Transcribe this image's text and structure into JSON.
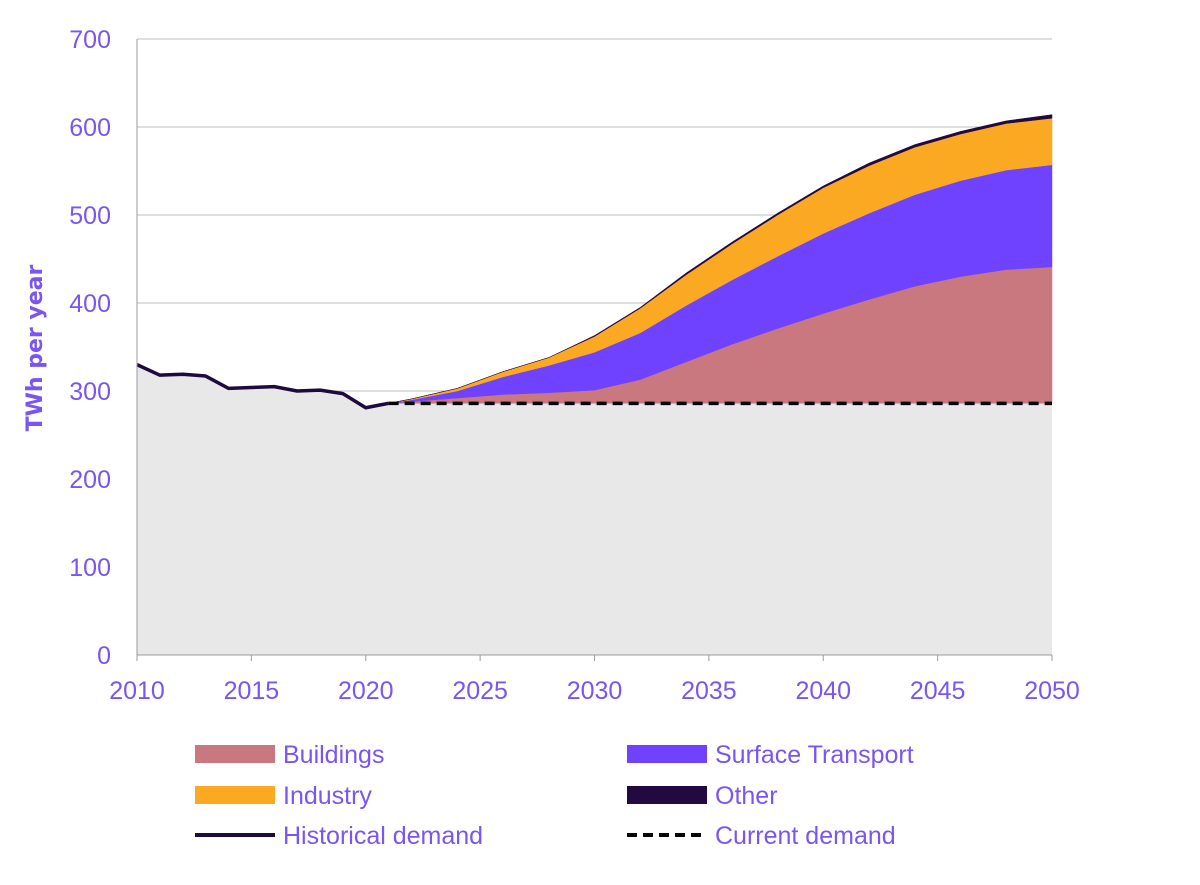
{
  "chart_data": {
    "type": "area",
    "xlabel": "",
    "ylabel": "TWh per year",
    "xlim": [
      2010,
      2050
    ],
    "ylim": [
      0,
      700
    ],
    "x_ticks": [
      2010,
      2015,
      2020,
      2025,
      2030,
      2035,
      2040,
      2045,
      2050
    ],
    "y_ticks": [
      0,
      100,
      200,
      300,
      400,
      500,
      600,
      700
    ],
    "grid": "horizontal",
    "legend_position": "bottom",
    "baseline_fill_color": "#e8e8e8",
    "historical": {
      "name": "Historical demand",
      "color": "#1e0a3c",
      "x": [
        2010,
        2011,
        2012,
        2013,
        2014,
        2015,
        2016,
        2017,
        2018,
        2019,
        2020,
        2021
      ],
      "y": [
        330,
        318,
        319,
        317,
        303,
        304,
        305,
        300,
        301,
        297,
        281,
        286
      ]
    },
    "current_demand": {
      "name": "Current demand",
      "color": "#000000",
      "value": 286,
      "from_x": 2021,
      "to_x": 2050
    },
    "stack_x": [
      2021,
      2022,
      2024,
      2026,
      2028,
      2030,
      2032,
      2034,
      2036,
      2038,
      2040,
      2042,
      2044,
      2046,
      2048,
      2050
    ],
    "series": [
      {
        "name": "Buildings",
        "color": "#c8787e",
        "values": [
          0,
          2,
          6,
          10,
          12,
          15,
          27,
          47,
          67,
          85,
          102,
          118,
          133,
          144,
          152,
          155
        ]
      },
      {
        "name": "Surface Transport",
        "color": "#6e42ff",
        "values": [
          0,
          2,
          8,
          20,
          31,
          43,
          53,
          64,
          73,
          82,
          91,
          98,
          104,
          109,
          113,
          116
        ]
      },
      {
        "name": "Industry",
        "color": "#fba823",
        "values": [
          0,
          1,
          3,
          6,
          9,
          18,
          28,
          35,
          41,
          47,
          52,
          54,
          54,
          53,
          53,
          53
        ]
      },
      {
        "name": "Other",
        "color": "#22093f",
        "values": [
          0,
          0,
          0,
          0,
          0,
          1,
          1,
          2,
          2,
          2,
          2,
          3,
          3,
          3,
          3,
          4
        ]
      }
    ],
    "legend": [
      {
        "label": "Buildings",
        "kind": "swatch",
        "color": "#c8787e"
      },
      {
        "label": "Surface Transport",
        "kind": "swatch",
        "color": "#6e42ff"
      },
      {
        "label": "Industry",
        "kind": "swatch",
        "color": "#fba823"
      },
      {
        "label": "Other",
        "kind": "swatch",
        "color": "#22093f"
      },
      {
        "label": "Historical demand",
        "kind": "line",
        "color": "#1e0a3c"
      },
      {
        "label": "Current demand",
        "kind": "dashed",
        "color": "#000000"
      }
    ]
  }
}
